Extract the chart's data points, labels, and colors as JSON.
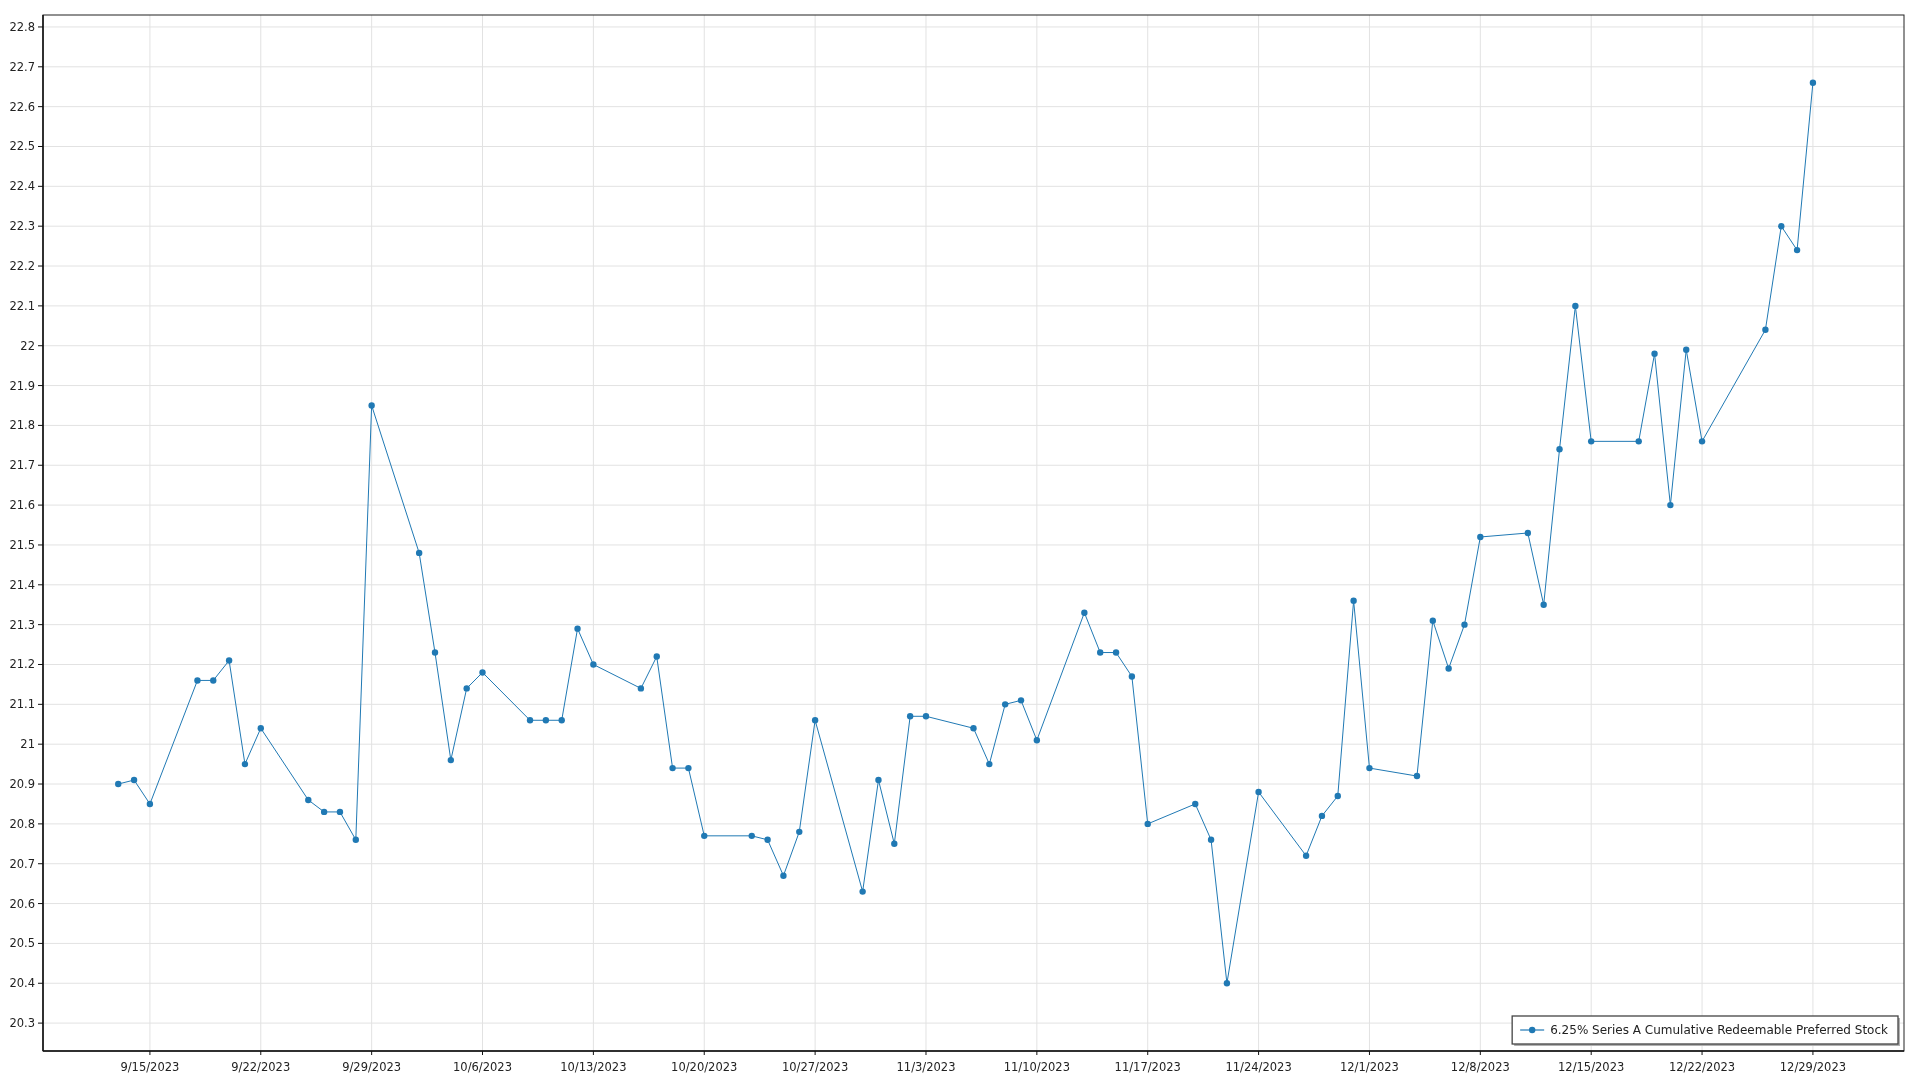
{
  "chart_data": {
    "type": "line",
    "x": [
      "2023-09-13",
      "2023-09-14",
      "2023-09-15",
      "2023-09-18",
      "2023-09-19",
      "2023-09-20",
      "2023-09-21",
      "2023-09-22",
      "2023-09-25",
      "2023-09-26",
      "2023-09-27",
      "2023-09-28",
      "2023-09-29",
      "2023-10-02",
      "2023-10-03",
      "2023-10-04",
      "2023-10-05",
      "2023-10-06",
      "2023-10-09",
      "2023-10-10",
      "2023-10-11",
      "2023-10-12",
      "2023-10-13",
      "2023-10-16",
      "2023-10-17",
      "2023-10-18",
      "2023-10-19",
      "2023-10-20",
      "2023-10-23",
      "2023-10-24",
      "2023-10-25",
      "2023-10-26",
      "2023-10-27",
      "2023-10-30",
      "2023-10-31",
      "2023-11-01",
      "2023-11-02",
      "2023-11-03",
      "2023-11-06",
      "2023-11-07",
      "2023-11-08",
      "2023-11-09",
      "2023-11-10",
      "2023-11-13",
      "2023-11-14",
      "2023-11-15",
      "2023-11-16",
      "2023-11-17",
      "2023-11-20",
      "2023-11-21",
      "2023-11-22",
      "2023-11-24",
      "2023-11-27",
      "2023-11-28",
      "2023-11-29",
      "2023-11-30",
      "2023-12-01",
      "2023-12-04",
      "2023-12-05",
      "2023-12-06",
      "2023-12-07",
      "2023-12-08",
      "2023-12-11",
      "2023-12-12",
      "2023-12-13",
      "2023-12-14",
      "2023-12-15",
      "2023-12-18",
      "2023-12-19",
      "2023-12-20",
      "2023-12-21",
      "2023-12-22",
      "2023-12-26",
      "2023-12-27",
      "2023-12-28",
      "2023-12-29"
    ],
    "series": [
      {
        "name": "6.25% Series A Cumulative Redeemable Preferred Stock",
        "color": "#2079b4",
        "values": [
          20.9,
          20.91,
          20.85,
          21.16,
          21.16,
          21.21,
          20.95,
          21.04,
          20.86,
          20.83,
          20.83,
          20.76,
          21.85,
          21.48,
          21.23,
          20.96,
          21.14,
          21.18,
          21.06,
          21.06,
          21.06,
          21.29,
          21.2,
          21.14,
          21.22,
          20.94,
          20.94,
          20.77,
          20.77,
          20.76,
          20.67,
          20.78,
          21.06,
          20.63,
          20.91,
          20.75,
          21.07,
          21.07,
          21.04,
          20.95,
          21.1,
          21.11,
          21.01,
          21.33,
          21.23,
          21.23,
          21.17,
          20.8,
          20.85,
          20.76,
          20.4,
          20.88,
          20.72,
          20.82,
          20.87,
          21.36,
          20.94,
          20.92,
          21.31,
          21.19,
          21.3,
          21.52,
          21.53,
          21.35,
          21.74,
          22.1,
          21.76,
          21.76,
          21.98,
          21.6,
          21.99,
          21.76,
          22.04,
          22.3,
          22.24,
          22.66
        ]
      }
    ],
    "xlim": [
      "2023-09-08T06:00",
      "2024-01-03T18:00"
    ],
    "xticks": [
      {
        "value": "2023-09-15",
        "label": "9/15/2023"
      },
      {
        "value": "2023-09-22",
        "label": "9/22/2023"
      },
      {
        "value": "2023-09-29",
        "label": "9/29/2023"
      },
      {
        "value": "2023-10-06",
        "label": "10/6/2023"
      },
      {
        "value": "2023-10-13",
        "label": "10/13/2023"
      },
      {
        "value": "2023-10-20",
        "label": "10/20/2023"
      },
      {
        "value": "2023-10-27",
        "label": "10/27/2023"
      },
      {
        "value": "2023-11-03",
        "label": "11/3/2023"
      },
      {
        "value": "2023-11-10",
        "label": "11/10/2023"
      },
      {
        "value": "2023-11-17",
        "label": "11/17/2023"
      },
      {
        "value": "2023-11-24",
        "label": "11/24/2023"
      },
      {
        "value": "2023-12-01",
        "label": "12/1/2023"
      },
      {
        "value": "2023-12-08",
        "label": "12/8/2023"
      },
      {
        "value": "2023-12-15",
        "label": "12/15/2023"
      },
      {
        "value": "2023-12-22",
        "label": "12/22/2023"
      },
      {
        "value": "2023-12-29",
        "label": "12/29/2023"
      }
    ],
    "ylim": [
      20.23,
      22.83
    ],
    "yticks": [
      20.3,
      20.4,
      20.5,
      20.6,
      20.7,
      20.8,
      20.9,
      21,
      21.1,
      21.2,
      21.3,
      21.4,
      21.5,
      21.6,
      21.7,
      21.8,
      21.9,
      22,
      22.1,
      22.2,
      22.3,
      22.4,
      22.5,
      22.6,
      22.7,
      22.8
    ],
    "grid": true,
    "legend": "bottom right",
    "marker": "circle",
    "line_style": "solid"
  }
}
